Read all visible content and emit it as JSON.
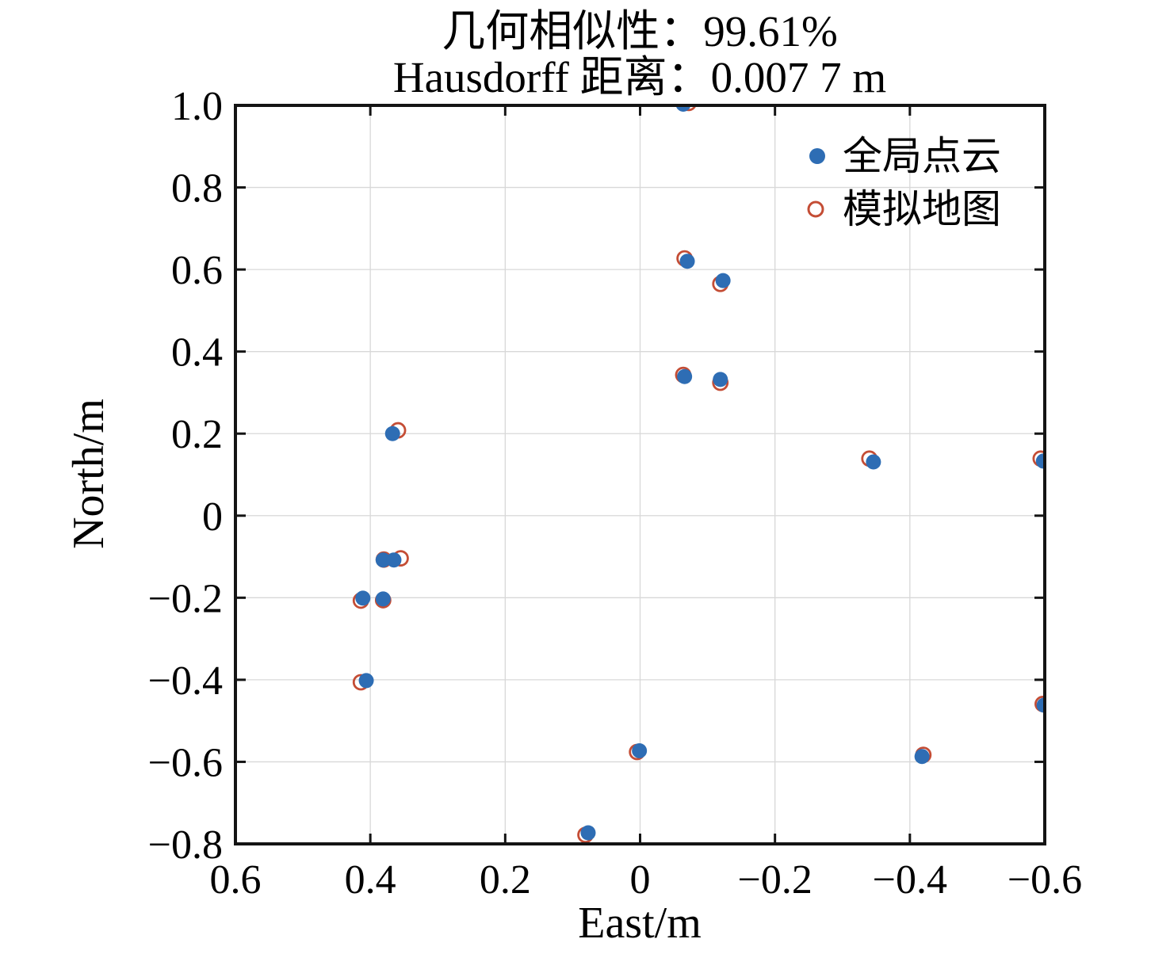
{
  "title": {
    "line1": "几何相似性：99.61%",
    "line2": "Hausdorff 距离：0.007 7 m"
  },
  "axes": {
    "xlabel": "East/m",
    "ylabel": "North/m",
    "x_tick_labels": [
      "0.6",
      "0.4",
      "0.2",
      "0",
      "−0.2",
      "−0.4",
      "−0.6"
    ],
    "x_tick_values": [
      0.6,
      0.4,
      0.2,
      0,
      -0.2,
      -0.4,
      -0.6
    ],
    "y_tick_labels": [
      "1.0",
      "0.8",
      "0.6",
      "0.4",
      "0.2",
      "0",
      "−0.2",
      "−0.4",
      "−0.6",
      "−0.8"
    ],
    "y_tick_values": [
      1.0,
      0.8,
      0.6,
      0.4,
      0.2,
      0,
      -0.2,
      -0.4,
      -0.6,
      -0.8
    ],
    "xlim": [
      0.6,
      -0.6
    ],
    "ylim": [
      -0.8,
      1.0
    ],
    "x_reversed": true,
    "grid": true
  },
  "legend": {
    "position": "top-right-inside",
    "items": [
      {
        "label": "全局点云",
        "marker": "filled-dot",
        "color": "#2e6db4"
      },
      {
        "label": "模拟地图",
        "marker": "open-circle",
        "color": "#c44d35"
      }
    ]
  },
  "colors": {
    "global_points": "#2e6db4",
    "sim_points": "#c44d35",
    "gridline": "#d8d8d8",
    "spine": "#141414",
    "text": "#000000"
  },
  "chart_data": {
    "type": "scatter",
    "title": "几何相似性：99.61%\nHausdorff 距离：0.007 7 m",
    "xlabel": "East/m",
    "ylabel": "North/m",
    "xlim": [
      0.6,
      -0.6
    ],
    "ylim": [
      -0.8,
      1.0
    ],
    "x_reversed": true,
    "grid": true,
    "legend_position": "top-right",
    "series": [
      {
        "name": "模拟地图",
        "marker": "open-circle",
        "color": "#c44d35",
        "points": [
          [
            -0.072,
            1.006
          ],
          [
            -0.066,
            0.627
          ],
          [
            -0.119,
            0.565
          ],
          [
            -0.064,
            0.343
          ],
          [
            -0.119,
            0.324
          ],
          [
            0.359,
            0.208
          ],
          [
            -0.34,
            0.139
          ],
          [
            -0.594,
            0.139
          ],
          [
            0.38,
            -0.107
          ],
          [
            0.355,
            -0.104
          ],
          [
            0.414,
            -0.207
          ],
          [
            0.381,
            -0.206
          ],
          [
            0.414,
            -0.406
          ],
          [
            0.0045,
            -0.576
          ],
          [
            -0.42,
            -0.583
          ],
          [
            -0.597,
            -0.459
          ],
          [
            0.081,
            -0.778
          ]
        ]
      },
      {
        "name": "全局点云",
        "marker": "filled-circle",
        "color": "#2e6db4",
        "points": [
          [
            -0.064,
            1.003
          ],
          [
            -0.07,
            0.62
          ],
          [
            -0.123,
            0.573
          ],
          [
            -0.066,
            0.339
          ],
          [
            -0.119,
            0.332
          ],
          [
            0.367,
            0.2
          ],
          [
            -0.346,
            0.131
          ],
          [
            -0.598,
            0.133
          ],
          [
            0.381,
            -0.108
          ],
          [
            0.365,
            -0.108
          ],
          [
            0.411,
            -0.201
          ],
          [
            0.381,
            -0.203
          ],
          [
            0.406,
            -0.402
          ],
          [
            0.001,
            -0.573
          ],
          [
            -0.418,
            -0.587
          ],
          [
            -0.599,
            -0.462
          ],
          [
            0.077,
            -0.773
          ]
        ]
      }
    ]
  }
}
